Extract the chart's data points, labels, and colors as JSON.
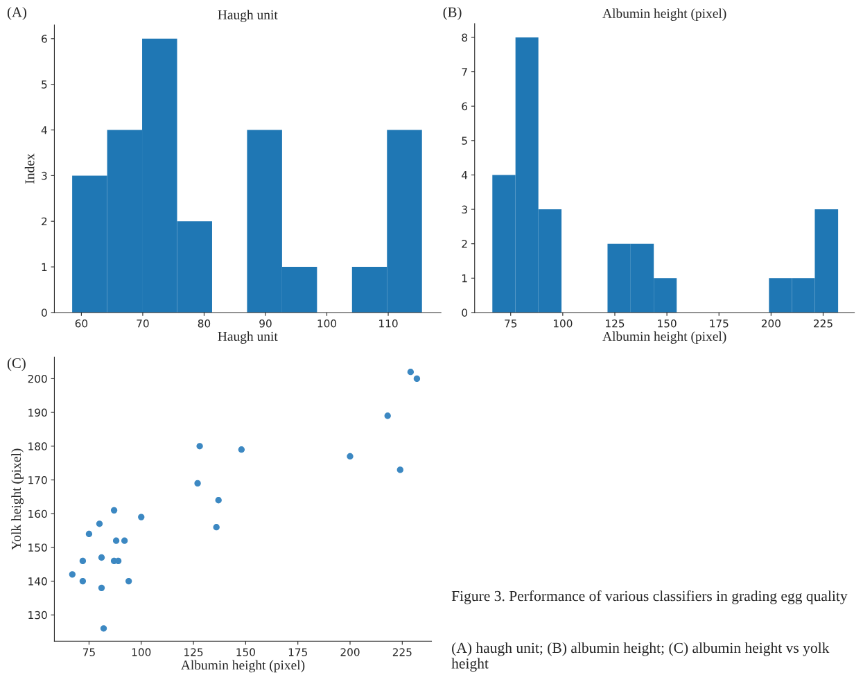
{
  "chart_data": [
    {
      "type": "histogram",
      "title": "Haugh unit",
      "xlabel": "Haugh unit",
      "ylabel": "Index",
      "annotations": [
        "(A)"
      ],
      "color": "#1f77b4",
      "bins": [
        58.5,
        64.2,
        69.9,
        75.6,
        81.3,
        87.0,
        92.7,
        98.4,
        104.1,
        109.8,
        115.5
      ],
      "values": [
        3,
        4,
        6,
        2,
        0,
        4,
        1,
        0,
        1,
        4
      ],
      "xlim": [
        55.6,
        118.6
      ],
      "xticks": [
        60,
        70,
        80,
        90,
        100,
        110
      ],
      "ylim": [
        0,
        6.3
      ],
      "yticks": [
        0,
        1,
        2,
        3,
        4,
        5,
        6
      ],
      "grid": false
    },
    {
      "type": "histogram",
      "title": "Albumin height (pixel)",
      "xlabel": "Albumin height (pixel)",
      "annotations": [
        "(B)"
      ],
      "color": "#1f77b4",
      "bins": [
        66.2,
        77.3,
        88.3,
        99.4,
        110.5,
        121.5,
        132.6,
        143.7,
        154.7,
        165.8,
        176.9,
        187.9,
        199.0,
        210.0,
        221.0,
        232.2
      ],
      "values": [
        4,
        8,
        3,
        0,
        0,
        2,
        2,
        1,
        0,
        0,
        0,
        0,
        1,
        1,
        3
      ],
      "xlim": [
        57.7,
        240
      ],
      "xticks": [
        75,
        100,
        125,
        150,
        175,
        200,
        225
      ],
      "ylim": [
        0,
        8.4
      ],
      "yticks": [
        0,
        1,
        2,
        3,
        4,
        5,
        6,
        7,
        8
      ],
      "grid": false
    },
    {
      "type": "scatter",
      "xlabel": "Albumin height (pixel)",
      "ylabel": "Yolk height (pixel)",
      "color": "#3c88c2",
      "marker": "circle",
      "annotations": [
        "(C)",
        "Figure 3. Performance of various classifiers in grading egg quality",
        "(A) haugh unit; (B) albumin height; (C) albumin height vs yolk height"
      ],
      "x": [
        67,
        72,
        72,
        75,
        80,
        81,
        81,
        82,
        87,
        88,
        87,
        89,
        92,
        94,
        100,
        127,
        128,
        136,
        137,
        148,
        200,
        218,
        224,
        229,
        232
      ],
      "values": [
        142,
        146,
        140,
        154,
        157,
        147,
        138,
        126,
        161,
        152,
        146,
        146,
        152,
        140,
        159,
        169,
        180,
        156,
        164,
        179,
        177,
        189,
        173,
        202,
        200
      ],
      "xlim": [
        58.4,
        239
      ],
      "xticks": [
        75,
        100,
        125,
        150,
        175,
        200,
        225
      ],
      "ylim": [
        122.2,
        206.4
      ],
      "yticks": [
        130,
        140,
        150,
        160,
        170,
        180,
        190,
        200
      ],
      "grid": false
    }
  ]
}
